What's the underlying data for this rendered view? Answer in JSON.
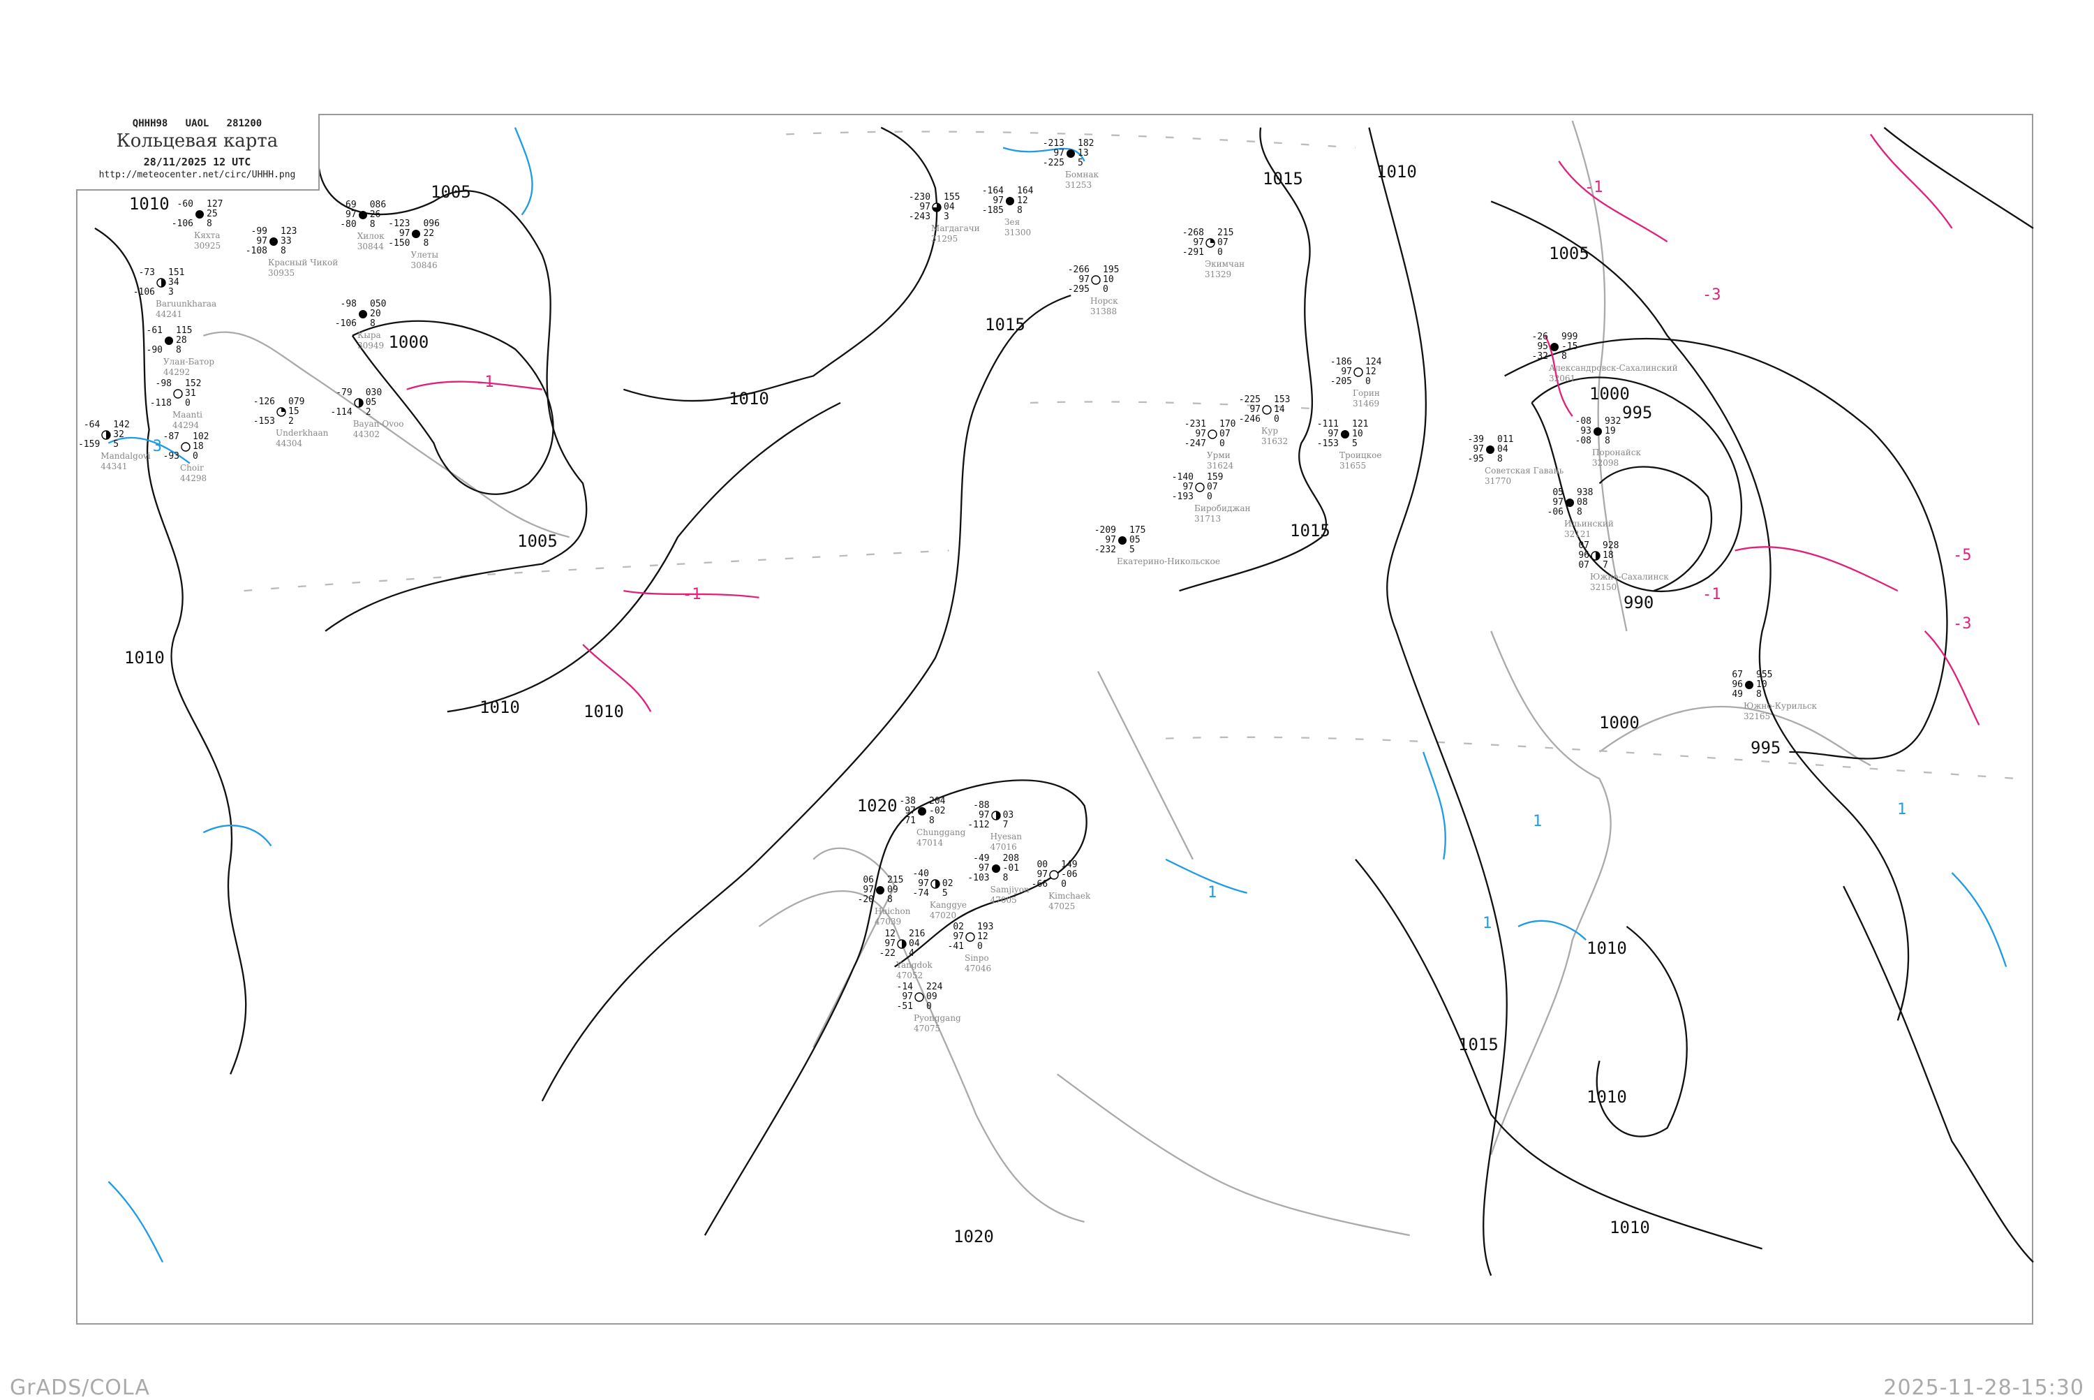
{
  "header": {
    "code_line": "QHHH98   UAOL   281200",
    "title": "Кольцевая карта",
    "date": "28/11/2025 12 UTC",
    "url": "http://meteocenter.net/circ/UHHH.png"
  },
  "footer": {
    "left": "GrADS/COLA",
    "right": "2025-11-28-15:30"
  },
  "colors": {
    "isobar": "#111111",
    "isotherm_negative": "#e0207a",
    "isotherm_positive": "#1e9be6",
    "coastline": "#aaaaaa",
    "frame": "#999999"
  },
  "isobar_labels": [
    "1010",
    "1005",
    "1000",
    "1010",
    "1005",
    "1010",
    "1010",
    "1010",
    "1020",
    "1015",
    "1010",
    "1015",
    "1015",
    "1005",
    "1000",
    "995",
    "990",
    "1000",
    "995",
    "1010",
    "1015",
    "1010",
    "1010",
    "1020"
  ],
  "isotherm_labels": [
    "-1",
    "-1",
    "-1",
    "-3",
    "-5",
    "-3",
    "-1",
    "1",
    "3",
    "1",
    "1",
    "1"
  ],
  "stations": [
    {
      "name": "Бомнак",
      "index": "31253",
      "t": "-213",
      "vis": "97",
      "td": "-225",
      "p": "182",
      "tend": "13",
      "n": "5",
      "cover": "full"
    },
    {
      "name": "Зея",
      "index": "31300",
      "t": "-164",
      "vis": "97",
      "td": "-185",
      "p": "164",
      "tend": "12",
      "n": "8",
      "cover": "full"
    },
    {
      "name": "Магдагачи",
      "index": "31295",
      "t": "-230",
      "vis": "97",
      "td": "-243",
      "p": "155",
      "tend": "04",
      "n": "3",
      "cover": "three-quarter"
    },
    {
      "name": "Норск",
      "index": "31388",
      "t": "-266",
      "vis": "97",
      "td": "-295",
      "p": "195",
      "tend": "10",
      "n": "0",
      "cover": "empty"
    },
    {
      "name": "Экимчан",
      "index": "31329",
      "t": "-268",
      "vis": "97",
      "td": "-291",
      "p": "215",
      "tend": "07",
      "n": "0",
      "cover": "quarter"
    },
    {
      "name": "Александровск-Сахалинский",
      "index": "32061",
      "t": "-26",
      "vis": "95",
      "td": "-32",
      "p": "999",
      "tend": "-15",
      "n": "8",
      "cover": "full"
    },
    {
      "name": "Поронайск",
      "index": "32098",
      "t": "-08",
      "vis": "93",
      "td": "-08",
      "p": "932",
      "tend": "19",
      "n": "8",
      "cover": "full"
    },
    {
      "name": "Советская Гавань",
      "index": "31770",
      "t": "-39",
      "vis": "97",
      "td": "-95",
      "p": "011",
      "tend": "04",
      "n": "8",
      "cover": "full"
    },
    {
      "name": "Ильинский",
      "index": "32121",
      "t": "05",
      "vis": "97",
      "td": "-06",
      "p": "938",
      "tend": "08",
      "n": "8",
      "cover": "full"
    },
    {
      "name": "Южно-Сахалинск",
      "index": "32150",
      "t": "07",
      "vis": "96",
      "td": "07",
      "p": "928",
      "tend": "18",
      "n": "7",
      "cover": "half"
    },
    {
      "name": "Кяхта",
      "index": "30925",
      "t": "-60",
      "td": "-106",
      "p": "127",
      "tend": "25",
      "n": "8",
      "cover": "full"
    },
    {
      "name": "Красный Чикой",
      "index": "30935",
      "t": "-99",
      "vis": "97",
      "td": "-108",
      "p": "123",
      "tend": "33",
      "n": "8",
      "cover": "full"
    },
    {
      "name": "Хилок",
      "index": "30844",
      "t": "-69",
      "vis": "97",
      "td": "-80",
      "p": "086",
      "tend": "26",
      "n": "8",
      "cover": "full"
    },
    {
      "name": "Улеты",
      "index": "30846",
      "t": "-123",
      "vis": "97",
      "td": "-150",
      "p": "096",
      "tend": "22",
      "n": "8",
      "cover": "full"
    },
    {
      "name": "Baruunkharaa",
      "index": "44241",
      "t": "-73",
      "td": "-106",
      "p": "151",
      "tend": "34",
      "n": "3",
      "cover": "half"
    },
    {
      "name": "Улан-Батор",
      "index": "44292",
      "t": "-61",
      "td": "-90",
      "p": "115",
      "tend": "28",
      "n": "8",
      "cover": "full"
    },
    {
      "name": "Maanti",
      "index": "44294",
      "t": "-98",
      "td": "-118",
      "p": "152",
      "tend": "31",
      "n": "0",
      "cover": "empty"
    },
    {
      "name": "Кыра",
      "index": "30949",
      "t": "-98",
      "td": "-106",
      "p": "050",
      "tend": "20",
      "n": "8",
      "cover": "full"
    },
    {
      "name": "Choir",
      "index": "44298",
      "t": "-87",
      "td": "-93",
      "p": "102",
      "tend": "18",
      "n": "0",
      "cover": "empty"
    },
    {
      "name": "Mandalgovi",
      "index": "44341",
      "t": "-64",
      "td": "-159",
      "p": "142",
      "tend": "32",
      "n": "5",
      "cover": "half"
    },
    {
      "name": "Underkhaan",
      "index": "44304",
      "t": "-126",
      "td": "-153",
      "p": "079",
      "tend": "15",
      "n": "2",
      "cover": "quarter"
    },
    {
      "name": "Bayan-Ovoo",
      "index": "44302",
      "t": "-79",
      "td": "-114",
      "p": "030",
      "tend": "05",
      "n": "2",
      "cover": "half"
    },
    {
      "name": "Chunggang",
      "index": "47014",
      "t": "-38",
      "vis": "97",
      "td": "-71",
      "p": "204",
      "tend": "-02",
      "n": "8",
      "cover": "full"
    },
    {
      "name": "Hyesan",
      "index": "47016",
      "t": "-88",
      "vis": "97",
      "td": "-112",
      "tend": "03",
      "n": "7",
      "cover": "half"
    },
    {
      "name": "Samjiyon",
      "index": "47005",
      "t": "-49",
      "vis": "97",
      "td": "-103",
      "p": "208",
      "tend": "-01",
      "n": "8",
      "cover": "full"
    },
    {
      "name": "Huichon",
      "index": "47039",
      "t": "06",
      "vis": "97",
      "td": "-20",
      "p": "215",
      "tend": "09",
      "n": "8",
      "cover": "full"
    },
    {
      "name": "Kanggye",
      "index": "47020",
      "t": "-40",
      "vis": "97",
      "td": "-74",
      "tend": "02",
      "n": "5",
      "cover": "half"
    },
    {
      "name": "Kimchaek",
      "index": "47025",
      "t": "00",
      "vis": "97",
      "td": "-66",
      "p": "149",
      "tend": "-06",
      "n": "0",
      "cover": "empty"
    },
    {
      "name": "Sinpo",
      "index": "47046",
      "t": "02",
      "vis": "97",
      "td": "-41",
      "p": "193",
      "tend": "12",
      "n": "0",
      "cover": "empty"
    },
    {
      "name": "Yangdok",
      "index": "47052",
      "t": "12",
      "vis": "97",
      "td": "-22",
      "p": "216",
      "tend": "04",
      "n": "4",
      "cover": "half"
    },
    {
      "name": "Pyonggang",
      "index": "47075",
      "t": "-14",
      "vis": "97",
      "td": "-51",
      "p": "224",
      "tend": "09",
      "n": "0",
      "cover": "empty"
    },
    {
      "name": "Кур",
      "index": "31632",
      "t": "-225",
      "vis": "97",
      "td": "-246",
      "p": "153",
      "tend": "14",
      "n": "0",
      "cover": "empty"
    },
    {
      "name": "Урми",
      "index": "31624",
      "t": "-231",
      "vis": "97",
      "td": "-247",
      "p": "170",
      "tend": "07",
      "n": "0",
      "cover": "empty"
    },
    {
      "name": "Троицкое",
      "index": "31655",
      "t": "-111",
      "vis": "97",
      "td": "-153",
      "p": "121",
      "tend": "10",
      "n": "5",
      "cover": "full"
    },
    {
      "name": "Биробиджан",
      "index": "31713",
      "t": "-140",
      "vis": "97",
      "td": "-193",
      "p": "159",
      "tend": "07",
      "n": "0",
      "cover": "empty"
    },
    {
      "name": "Екатерино-Никольское",
      "t": "-209",
      "vis": "97",
      "td": "-232",
      "p": "175",
      "tend": "05",
      "n": "5",
      "cover": "full"
    },
    {
      "name": "Горин",
      "index": "31469",
      "t": "-186",
      "vis": "97",
      "td": "-205",
      "p": "124",
      "tend": "12",
      "n": "0",
      "cover": "empty"
    },
    {
      "name": "Южно-Курильск",
      "index": "32165",
      "t": "67",
      "vis": "96",
      "td": "49",
      "p": "955",
      "tend": "10",
      "n": "8",
      "cover": "full"
    }
  ]
}
